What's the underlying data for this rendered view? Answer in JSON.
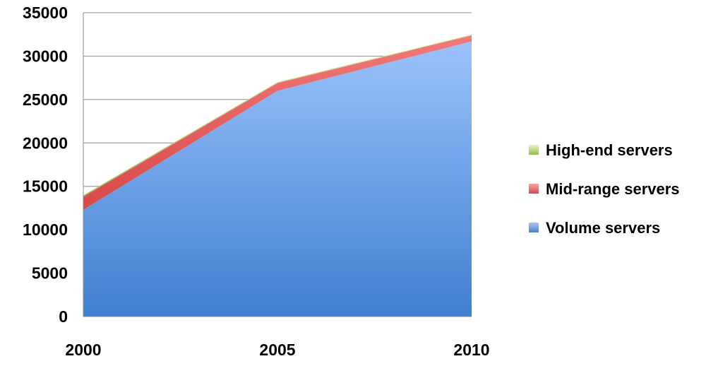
{
  "chart_data": {
    "type": "area",
    "stacked": true,
    "title": "",
    "xlabel": "",
    "ylabel": "",
    "x": [
      2000,
      2005,
      2010
    ],
    "x_tick_labels": [
      "2000",
      "2005",
      "2010"
    ],
    "ylim": [
      0,
      35000
    ],
    "y_ticks": [
      0,
      5000,
      10000,
      15000,
      20000,
      25000,
      30000,
      35000
    ],
    "y_tick_labels": [
      "0",
      "5000",
      "10000",
      "15000",
      "20000",
      "25000",
      "30000",
      "35000"
    ],
    "grid": true,
    "legend_position": "right",
    "series": [
      {
        "name": "Volume servers",
        "values": [
          12300,
          26000,
          31700
        ],
        "color": "#4f81bd"
      },
      {
        "name": "Mid-range servers",
        "values": [
          1500,
          900,
          700
        ],
        "color": "#e05a5a"
      },
      {
        "name": "High-end servers",
        "values": [
          150,
          100,
          100
        ],
        "color": "#9bbb59"
      }
    ],
    "legend_order": [
      "High-end servers",
      "Mid-range servers",
      "Volume servers"
    ]
  }
}
